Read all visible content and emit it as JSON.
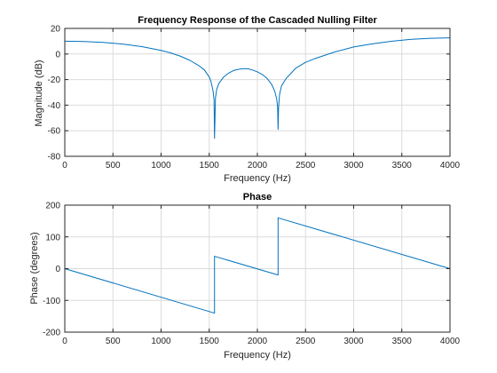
{
  "chart_data": [
    {
      "type": "line",
      "title": "Frequency Response of the Cascaded Nulling Filter",
      "xlabel": "Frequency (Hz)",
      "ylabel": "Magnitude (dB)",
      "xlim": [
        0,
        4000
      ],
      "ylim": [
        -80,
        20
      ],
      "xticks": [
        0,
        500,
        1000,
        1500,
        2000,
        2500,
        3000,
        3500,
        4000
      ],
      "yticks": [
        20,
        0,
        -20,
        -40,
        -60,
        -80
      ],
      "grid": true,
      "series": [
        {
          "color": "#0072BD",
          "x": [
            0,
            200,
            400,
            600,
            800,
            1000,
            1100,
            1200,
            1300,
            1400,
            1450,
            1500,
            1520,
            1540,
            1550,
            1555,
            1565,
            1580,
            1600,
            1650,
            1700,
            1750,
            1800,
            1850,
            1900,
            1950,
            2000,
            2050,
            2100,
            2150,
            2180,
            2200,
            2210,
            2215,
            2220,
            2230,
            2250,
            2300,
            2400,
            2500,
            2600,
            2800,
            3000,
            3200,
            3400,
            3600,
            3800,
            4000
          ],
          "y": [
            10,
            9.8,
            9.1,
            7.8,
            5.8,
            2.8,
            0.8,
            -1.7,
            -5,
            -9.5,
            -12.5,
            -18,
            -22,
            -29,
            -36,
            -66,
            -34,
            -27,
            -23,
            -18,
            -15,
            -13,
            -12,
            -11.5,
            -11.5,
            -12.5,
            -14,
            -16,
            -19,
            -24,
            -29,
            -35,
            -41,
            -59,
            -42,
            -32,
            -25,
            -19,
            -11,
            -6.5,
            -3.5,
            1.5,
            5.5,
            8,
            10,
            11.5,
            12.3,
            12.6
          ]
        }
      ]
    },
    {
      "type": "line",
      "title": "Phase",
      "xlabel": "Frequency (Hz)",
      "ylabel": "Phase (degrees)",
      "xlim": [
        0,
        4000
      ],
      "ylim": [
        -200,
        200
      ],
      "xticks": [
        0,
        500,
        1000,
        1500,
        2000,
        2500,
        3000,
        3500,
        4000
      ],
      "yticks": [
        200,
        100,
        0,
        -100,
        -200
      ],
      "grid": true,
      "series": [
        {
          "color": "#0072BD",
          "x": [
            0,
            1555,
            1555,
            2215,
            2215,
            4000
          ],
          "y": [
            0,
            -140,
            39,
            -20,
            160,
            0
          ]
        }
      ]
    }
  ]
}
